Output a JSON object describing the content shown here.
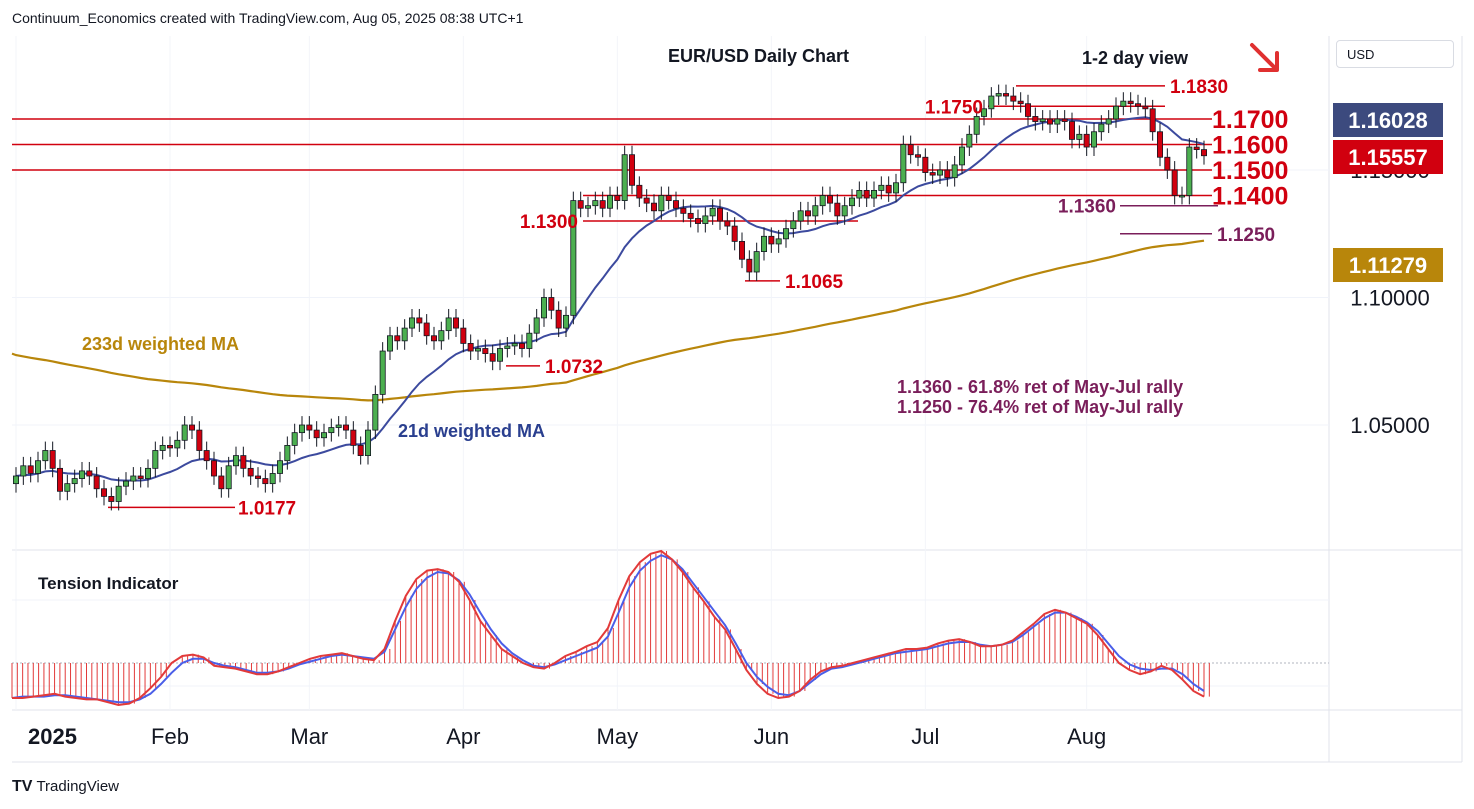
{
  "header": {
    "credit": "Continuum_Economics created with TradingView.com, Aug 05, 2025 08:38 UTC+1",
    "currency": "USD",
    "brand": "TradingView",
    "brand_icon": "tradingview-logo-icon"
  },
  "chart_data": [
    {
      "type": "candlestick",
      "title": "EUR/USD Daily Chart",
      "subtitle": "1-2 day view",
      "view_direction": "down-arrow",
      "x_ticks": [
        "2025",
        "Feb",
        "Mar",
        "Apr",
        "May",
        "Jun",
        "Jul",
        "Aug"
      ],
      "y_ticks": [
        1.05,
        1.1,
        1.15
      ],
      "y_tick_labels": [
        "1.05000",
        "1.10000",
        "1.15000"
      ],
      "ylim": [
        1.0,
        1.2
      ],
      "current_price": "1.15557",
      "ma21_value": "1.16028",
      "ma233_value": "1.11279",
      "horizontal_levels": [
        {
          "label": "1.1700",
          "value": 1.17
        },
        {
          "label": "1.1600",
          "value": 1.16
        },
        {
          "label": "1.1500",
          "value": 1.15
        },
        {
          "label": "1.1400",
          "value": 1.14
        }
      ],
      "annotated_levels": [
        {
          "label": "1.1830",
          "value": 1.183,
          "color": "#d1000f"
        },
        {
          "label": "1.1750",
          "value": 1.175,
          "color": "#d1000f"
        },
        {
          "label": "1.1360",
          "value": 1.136,
          "color": "#7a1e5a"
        },
        {
          "label": "1.1250",
          "value": 1.125,
          "color": "#7a1e5a"
        },
        {
          "label": "1.1300",
          "value": 1.13,
          "color": "#d1000f"
        },
        {
          "label": "1.1065",
          "value": 1.1065,
          "color": "#d1000f"
        },
        {
          "label": "1.0732",
          "value": 1.0732,
          "color": "#d1000f"
        },
        {
          "label": "1.0177",
          "value": 1.0177,
          "color": "#d1000f"
        }
      ],
      "series_labels": {
        "ma233": "233d weighted MA",
        "ma21": "21d weighted MA"
      },
      "notes": [
        "1.1360 - 61.8% ret of May-Jul rally",
        "1.1250 - 76.4% ret of May-Jul rally"
      ],
      "closes": [
        1.03,
        1.034,
        1.031,
        1.036,
        1.04,
        1.033,
        1.024,
        1.027,
        1.029,
        1.032,
        1.03,
        1.025,
        1.022,
        1.02,
        1.026,
        1.028,
        1.03,
        1.029,
        1.033,
        1.04,
        1.042,
        1.041,
        1.044,
        1.05,
        1.048,
        1.04,
        1.036,
        1.03,
        1.025,
        1.034,
        1.038,
        1.033,
        1.03,
        1.029,
        1.027,
        1.031,
        1.036,
        1.042,
        1.047,
        1.05,
        1.048,
        1.045,
        1.047,
        1.049,
        1.05,
        1.048,
        1.042,
        1.038,
        1.048,
        1.062,
        1.079,
        1.085,
        1.083,
        1.088,
        1.092,
        1.09,
        1.085,
        1.083,
        1.087,
        1.092,
        1.088,
        1.082,
        1.079,
        1.08,
        1.078,
        1.075,
        1.08,
        1.081,
        1.082,
        1.08,
        1.086,
        1.092,
        1.1,
        1.095,
        1.088,
        1.093,
        1.138,
        1.135,
        1.136,
        1.138,
        1.135,
        1.14,
        1.138,
        1.156,
        1.144,
        1.139,
        1.137,
        1.134,
        1.14,
        1.138,
        1.135,
        1.133,
        1.131,
        1.129,
        1.132,
        1.135,
        1.13,
        1.128,
        1.122,
        1.115,
        1.11,
        1.118,
        1.124,
        1.121,
        1.123,
        1.127,
        1.13,
        1.134,
        1.132,
        1.136,
        1.14,
        1.137,
        1.132,
        1.136,
        1.139,
        1.142,
        1.139,
        1.142,
        1.144,
        1.141,
        1.145,
        1.16,
        1.156,
        1.155,
        1.149,
        1.148,
        1.15,
        1.147,
        1.152,
        1.159,
        1.164,
        1.171,
        1.174,
        1.179,
        1.18,
        1.179,
        1.177,
        1.176,
        1.171,
        1.169,
        1.17,
        1.168,
        1.17,
        1.169,
        1.162,
        1.164,
        1.159,
        1.165,
        1.168,
        1.17,
        1.175,
        1.177,
        1.176,
        1.175,
        1.174,
        1.165,
        1.155,
        1.15,
        1.14,
        1.14,
        1.159,
        1.158,
        1.1556
      ],
      "tension_indicator": {
        "label": "Tension Indicator",
        "red_line": [
          -25,
          -25,
          -24,
          -23,
          -22,
          -24,
          -25,
          -26,
          -26,
          -28,
          -30,
          -29,
          -25,
          -18,
          -10,
          0,
          5,
          6,
          4,
          -2,
          -3,
          -4,
          -6,
          -8,
          -8,
          -6,
          -3,
          0,
          3,
          5,
          6,
          7,
          5,
          3,
          2,
          10,
          30,
          48,
          60,
          66,
          67,
          65,
          58,
          45,
          30,
          20,
          10,
          5,
          0,
          -3,
          -4,
          0,
          5,
          8,
          12,
          15,
          25,
          45,
          62,
          72,
          78,
          80,
          74,
          65,
          54,
          44,
          33,
          24,
          10,
          -5,
          -15,
          -22,
          -25,
          -24,
          -20,
          -12,
          -6,
          -3,
          -2,
          0,
          2,
          4,
          6,
          8,
          10,
          10,
          11,
          14,
          16,
          17,
          15,
          12,
          12,
          13,
          16,
          22,
          28,
          35,
          38,
          36,
          32,
          28,
          20,
          10,
          0,
          -5,
          -8,
          -6,
          -2,
          -5,
          -12,
          -20,
          -24
        ],
        "blue_line": [
          -25,
          -24,
          -24,
          -24,
          -23,
          -23,
          -24,
          -25,
          -26,
          -27,
          -28,
          -28,
          -26,
          -22,
          -15,
          -7,
          0,
          3,
          3,
          0,
          -2,
          -3,
          -5,
          -7,
          -7,
          -6,
          -4,
          -1,
          1,
          3,
          5,
          6,
          5,
          4,
          3,
          8,
          24,
          40,
          53,
          61,
          65,
          64,
          59,
          49,
          36,
          24,
          14,
          7,
          2,
          -2,
          -3,
          -1,
          2,
          5,
          8,
          11,
          19,
          36,
          54,
          66,
          73,
          77,
          74,
          67,
          57,
          47,
          37,
          27,
          14,
          0,
          -10,
          -17,
          -22,
          -23,
          -20,
          -14,
          -8,
          -4,
          -3,
          -1,
          1,
          3,
          5,
          7,
          8,
          9,
          10,
          12,
          14,
          15,
          15,
          13,
          12,
          13,
          15,
          20,
          26,
          32,
          36,
          36,
          33,
          29,
          23,
          14,
          5,
          -1,
          -4,
          -5,
          -4,
          -4,
          -8,
          -15,
          -20
        ]
      }
    }
  ]
}
